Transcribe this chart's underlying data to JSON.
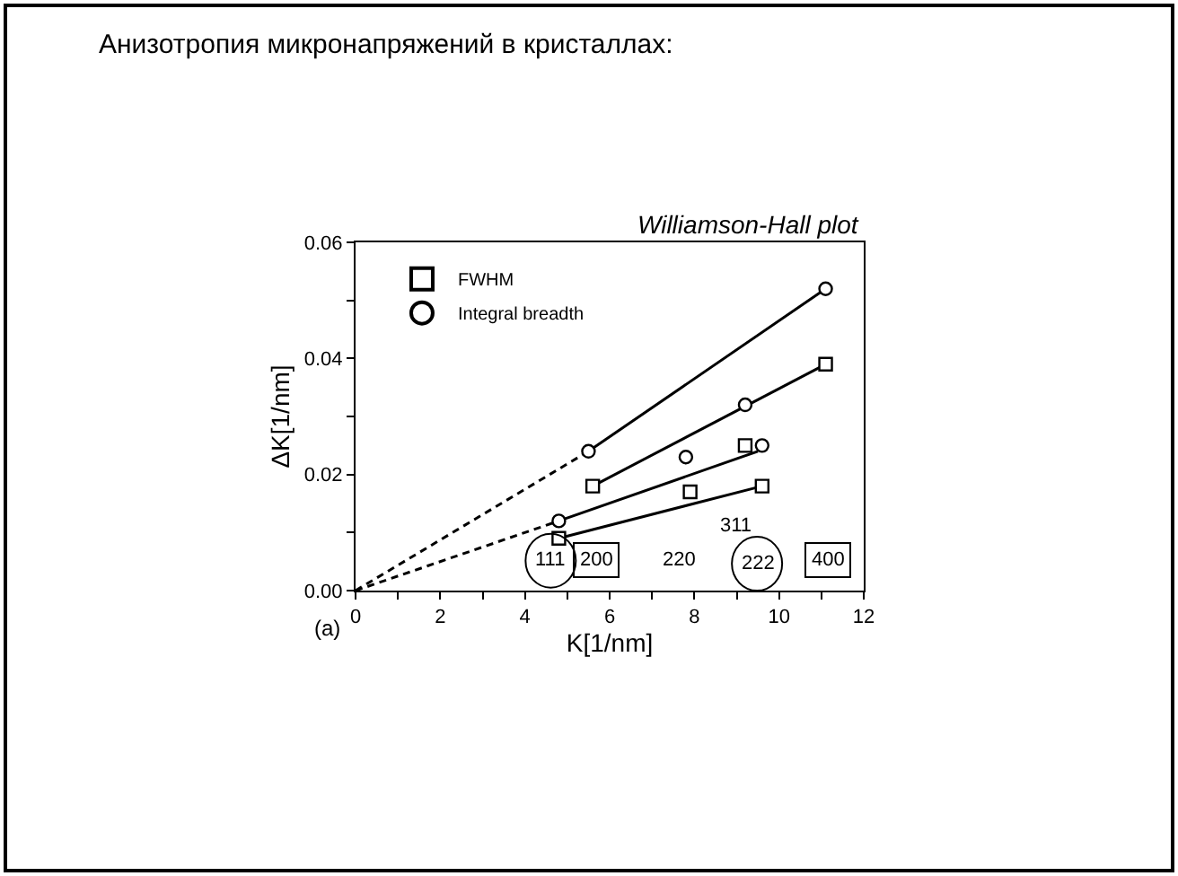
{
  "chart_data": {
    "type": "scatter",
    "title": "Анизотропия микронапряжений в кристаллах:",
    "subtitle": "Williamson-Hall plot",
    "xlabel": "K[1/nm]",
    "ylabel": "ΔK[1/nm]",
    "annotations": [
      "(a)",
      "111",
      "200",
      "220",
      "311",
      "222",
      "400"
    ],
    "series": [
      {
        "type": "line",
        "color": "#000000",
        "x": [
          5.5,
          11.1
        ],
        "values": [
          0.024,
          0.052
        ],
        "line_style": "solid"
      },
      {
        "type": "line",
        "color": "#000000",
        "x": [
          5.6,
          11.1
        ],
        "values": [
          0.018,
          0.039
        ],
        "line_style": "solid"
      },
      {
        "type": "line",
        "color": "#000000",
        "x": [
          4.8,
          9.5
        ],
        "values": [
          0.012,
          0.024
        ],
        "line_style": "solid"
      },
      {
        "type": "line",
        "color": "#000000",
        "x": [
          4.8,
          9.6
        ],
        "values": [
          0.009,
          0.018
        ],
        "line_style": "solid"
      },
      {
        "type": "line",
        "color": "#000000",
        "x": [
          0,
          5.5
        ],
        "values": [
          0,
          0.024
        ],
        "line_style": "dashed"
      },
      {
        "type": "line",
        "color": "#000000",
        "x": [
          0,
          4.8
        ],
        "values": [
          0,
          0.012
        ],
        "line_style": "dashed"
      },
      {
        "name": "FWHM",
        "marker": "square",
        "color": "#000000",
        "x": [
          4.8,
          5.6,
          7.9,
          9.2,
          9.6,
          11.1
        ],
        "values": [
          0.009,
          0.018,
          0.017,
          0.025,
          0.018,
          0.039
        ]
      },
      {
        "name": "Integral breadth",
        "marker": "circle",
        "color": "#000000",
        "x": [
          4.8,
          5.5,
          7.8,
          9.2,
          9.6,
          11.1
        ],
        "values": [
          0.012,
          0.024,
          0.023,
          0.032,
          0.025,
          0.052
        ]
      }
    ],
    "xlim": [
      0,
      12
    ],
    "xticks": [
      0,
      {
        "value": 1,
        "label": null
      },
      2,
      {
        "value": 3,
        "label": null
      },
      4,
      {
        "value": 5,
        "label": null
      },
      6,
      {
        "value": 7,
        "label": null
      },
      8,
      {
        "value": 9,
        "label": null
      },
      10,
      {
        "value": 11,
        "label": null
      },
      12
    ],
    "ylim": [
      0,
      0.06
    ],
    "yticks": [
      {
        "value": 0,
        "label": "0.00"
      },
      {
        "value": 0.01,
        "label": null
      },
      {
        "value": 0.02,
        "label": "0.02"
      },
      {
        "value": 0.03,
        "label": null
      },
      {
        "value": 0.04,
        "label": "0.04"
      },
      {
        "value": 0.05,
        "label": null
      },
      {
        "value": 0.06,
        "label": "0.06"
      }
    ],
    "legend": "top left"
  }
}
